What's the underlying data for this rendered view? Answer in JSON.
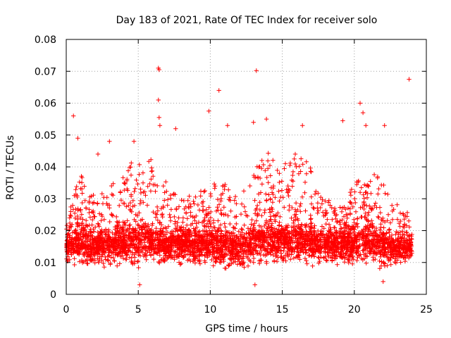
{
  "chart_data": {
    "type": "scatter",
    "title": "Day 183 of 2021, Rate Of TEC Index for receiver solo",
    "xlabel": "GPS time / hours",
    "ylabel": "ROTI / TECUs",
    "xlim": [
      0,
      25
    ],
    "ylim": [
      0,
      0.08
    ],
    "x_ticks": [
      0,
      5,
      10,
      15,
      20,
      25
    ],
    "x_tick_labels": [
      "0",
      "5",
      "10",
      "15",
      "20",
      "25"
    ],
    "y_ticks": [
      0,
      0.01,
      0.02,
      0.03,
      0.04,
      0.05,
      0.06,
      0.07,
      0.08
    ],
    "y_tick_labels": [
      "0",
      "0.01",
      "0.02",
      "0.03",
      "0.04",
      "0.05",
      "0.06",
      "0.07",
      "0.08"
    ],
    "grid": true,
    "marker": "+",
    "marker_color": "#ff0000",
    "x_data_range": [
      0,
      24
    ],
    "series": [
      {
        "name": "ROTI",
        "note": "Dense cloud of measurements between roughly 0.005 and 0.03 TECU/s across 0-24 h; representative envelope plus visible outliers below.",
        "envelope": [
          {
            "x": 0.0,
            "low": 0.008,
            "mid": 0.015,
            "high": 0.022
          },
          {
            "x": 1.0,
            "low": 0.008,
            "mid": 0.018,
            "high": 0.04
          },
          {
            "x": 2.0,
            "low": 0.007,
            "mid": 0.016,
            "high": 0.03
          },
          {
            "x": 3.0,
            "low": 0.008,
            "mid": 0.016,
            "high": 0.035
          },
          {
            "x": 4.0,
            "low": 0.008,
            "mid": 0.017,
            "high": 0.038
          },
          {
            "x": 5.0,
            "low": 0.007,
            "mid": 0.018,
            "high": 0.045
          },
          {
            "x": 6.0,
            "low": 0.008,
            "mid": 0.017,
            "high": 0.043
          },
          {
            "x": 7.0,
            "low": 0.008,
            "mid": 0.016,
            "high": 0.035
          },
          {
            "x": 8.0,
            "low": 0.008,
            "mid": 0.016,
            "high": 0.03
          },
          {
            "x": 9.0,
            "low": 0.008,
            "mid": 0.016,
            "high": 0.032
          },
          {
            "x": 10.0,
            "low": 0.008,
            "mid": 0.016,
            "high": 0.035
          },
          {
            "x": 11.0,
            "low": 0.007,
            "mid": 0.016,
            "high": 0.035
          },
          {
            "x": 12.0,
            "low": 0.007,
            "mid": 0.015,
            "high": 0.032
          },
          {
            "x": 13.0,
            "low": 0.007,
            "mid": 0.017,
            "high": 0.04
          },
          {
            "x": 14.0,
            "low": 0.008,
            "mid": 0.018,
            "high": 0.045
          },
          {
            "x": 15.0,
            "low": 0.008,
            "mid": 0.017,
            "high": 0.04
          },
          {
            "x": 16.0,
            "low": 0.008,
            "mid": 0.018,
            "high": 0.045
          },
          {
            "x": 17.0,
            "low": 0.008,
            "mid": 0.017,
            "high": 0.04
          },
          {
            "x": 18.0,
            "low": 0.008,
            "mid": 0.016,
            "high": 0.03
          },
          {
            "x": 19.0,
            "low": 0.008,
            "mid": 0.016,
            "high": 0.03
          },
          {
            "x": 20.0,
            "low": 0.008,
            "mid": 0.017,
            "high": 0.035
          },
          {
            "x": 21.0,
            "low": 0.008,
            "mid": 0.018,
            "high": 0.04
          },
          {
            "x": 22.0,
            "low": 0.006,
            "mid": 0.016,
            "high": 0.035
          },
          {
            "x": 23.0,
            "low": 0.008,
            "mid": 0.015,
            "high": 0.028
          },
          {
            "x": 24.0,
            "low": 0.009,
            "mid": 0.015,
            "high": 0.025
          }
        ],
        "outliers": [
          {
            "x": 0.5,
            "y": 0.056
          },
          {
            "x": 0.8,
            "y": 0.049
          },
          {
            "x": 2.2,
            "y": 0.044
          },
          {
            "x": 3.0,
            "y": 0.048
          },
          {
            "x": 4.7,
            "y": 0.048
          },
          {
            "x": 6.4,
            "y": 0.071
          },
          {
            "x": 6.45,
            "y": 0.0705
          },
          {
            "x": 6.4,
            "y": 0.061
          },
          {
            "x": 6.45,
            "y": 0.0555
          },
          {
            "x": 6.5,
            "y": 0.053
          },
          {
            "x": 7.6,
            "y": 0.052
          },
          {
            "x": 9.9,
            "y": 0.0575
          },
          {
            "x": 10.6,
            "y": 0.064
          },
          {
            "x": 11.2,
            "y": 0.053
          },
          {
            "x": 13.2,
            "y": 0.0702
          },
          {
            "x": 13.0,
            "y": 0.054
          },
          {
            "x": 13.9,
            "y": 0.055
          },
          {
            "x": 16.4,
            "y": 0.053
          },
          {
            "x": 19.2,
            "y": 0.0545
          },
          {
            "x": 20.4,
            "y": 0.06
          },
          {
            "x": 20.6,
            "y": 0.057
          },
          {
            "x": 20.8,
            "y": 0.053
          },
          {
            "x": 22.1,
            "y": 0.053
          },
          {
            "x": 23.8,
            "y": 0.0675
          },
          {
            "x": 5.1,
            "y": 0.003
          },
          {
            "x": 13.1,
            "y": 0.003
          },
          {
            "x": 22.0,
            "y": 0.004
          }
        ]
      }
    ]
  }
}
